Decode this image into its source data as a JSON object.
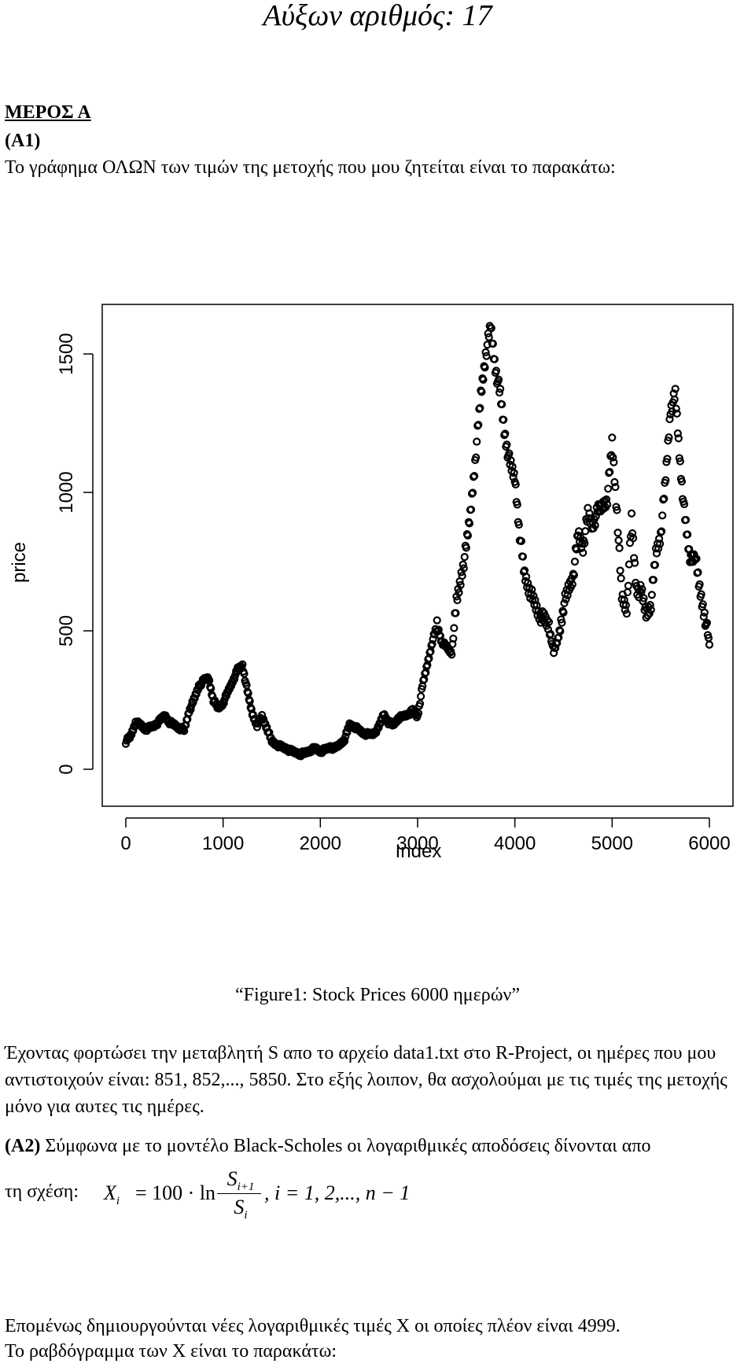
{
  "header": {
    "title": "Αύξων αριθμός: 17"
  },
  "section": {
    "heading": "ΜΕΡΟΣ Α",
    "label": "(Α1)",
    "intro": "Το γράφημα ΟΛΩΝ των τιμών της μετοχής που μου ζητείται είναι το παρακάτω:"
  },
  "chart_data": {
    "type": "scatter",
    "title": "",
    "xlabel": "Index",
    "ylabel": "price",
    "xlim": [
      0,
      6000
    ],
    "ylim": [
      0,
      1650
    ],
    "x_ticks": [
      "0",
      "1000",
      "2000",
      "3000",
      "4000",
      "5000",
      "6000"
    ],
    "y_ticks": [
      "0",
      "500",
      "1000",
      "1500"
    ],
    "grid": false,
    "series": [
      {
        "points": [
          [
            0,
            100
          ],
          [
            50,
            120
          ],
          [
            100,
            170
          ],
          [
            150,
            160
          ],
          [
            200,
            145
          ],
          [
            250,
            150
          ],
          [
            300,
            160
          ],
          [
            350,
            175
          ],
          [
            400,
            195
          ],
          [
            450,
            170
          ],
          [
            500,
            160
          ],
          [
            550,
            150
          ],
          [
            600,
            140
          ],
          [
            650,
            210
          ],
          [
            700,
            250
          ],
          [
            750,
            300
          ],
          [
            800,
            320
          ],
          [
            850,
            330
          ],
          [
            900,
            250
          ],
          [
            950,
            220
          ],
          [
            1000,
            240
          ],
          [
            1050,
            280
          ],
          [
            1100,
            320
          ],
          [
            1150,
            360
          ],
          [
            1200,
            375
          ],
          [
            1250,
            280
          ],
          [
            1300,
            200
          ],
          [
            1350,
            160
          ],
          [
            1400,
            190
          ],
          [
            1450,
            150
          ],
          [
            1500,
            100
          ],
          [
            1550,
            90
          ],
          [
            1600,
            80
          ],
          [
            1650,
            75
          ],
          [
            1700,
            65
          ],
          [
            1750,
            60
          ],
          [
            1800,
            55
          ],
          [
            1850,
            60
          ],
          [
            1900,
            70
          ],
          [
            1950,
            75
          ],
          [
            2000,
            65
          ],
          [
            2050,
            70
          ],
          [
            2100,
            80
          ],
          [
            2150,
            75
          ],
          [
            2200,
            90
          ],
          [
            2250,
            110
          ],
          [
            2300,
            160
          ],
          [
            2350,
            155
          ],
          [
            2400,
            140
          ],
          [
            2450,
            130
          ],
          [
            2500,
            125
          ],
          [
            2550,
            130
          ],
          [
            2600,
            150
          ],
          [
            2650,
            200
          ],
          [
            2700,
            170
          ],
          [
            2750,
            160
          ],
          [
            2800,
            185
          ],
          [
            2850,
            190
          ],
          [
            2900,
            200
          ],
          [
            2950,
            210
          ],
          [
            3000,
            190
          ],
          [
            3050,
            300
          ],
          [
            3100,
            380
          ],
          [
            3150,
            460
          ],
          [
            3200,
            520
          ],
          [
            3250,
            460
          ],
          [
            3300,
            440
          ],
          [
            3350,
            420
          ],
          [
            3400,
            600
          ],
          [
            3450,
            700
          ],
          [
            3500,
            800
          ],
          [
            3550,
            950
          ],
          [
            3600,
            1150
          ],
          [
            3650,
            1350
          ],
          [
            3700,
            1500
          ],
          [
            3750,
            1600
          ],
          [
            3800,
            1450
          ],
          [
            3850,
            1350
          ],
          [
            3900,
            1200
          ],
          [
            3950,
            1100
          ],
          [
            4000,
            1050
          ],
          [
            4050,
            850
          ],
          [
            4100,
            700
          ],
          [
            4150,
            650
          ],
          [
            4200,
            600
          ],
          [
            4250,
            560
          ],
          [
            4300,
            540
          ],
          [
            4350,
            520
          ],
          [
            4400,
            420
          ],
          [
            4450,
            480
          ],
          [
            4500,
            590
          ],
          [
            4550,
            650
          ],
          [
            4600,
            700
          ],
          [
            4650,
            850
          ],
          [
            4700,
            800
          ],
          [
            4750,
            920
          ],
          [
            4800,
            880
          ],
          [
            4850,
            930
          ],
          [
            4900,
            950
          ],
          [
            4950,
            980
          ],
          [
            5000,
            1180
          ],
          [
            5050,
            930
          ],
          [
            5100,
            620
          ],
          [
            5150,
            580
          ],
          [
            5200,
            900
          ],
          [
            5250,
            650
          ],
          [
            5300,
            640
          ],
          [
            5350,
            560
          ],
          [
            5400,
            600
          ],
          [
            5450,
            780
          ],
          [
            5500,
            850
          ],
          [
            5550,
            1050
          ],
          [
            5600,
            1300
          ],
          [
            5650,
            1350
          ],
          [
            5700,
            1100
          ],
          [
            5750,
            900
          ],
          [
            5800,
            760
          ],
          [
            5850,
            780
          ],
          [
            5900,
            650
          ],
          [
            5950,
            560
          ],
          [
            6000,
            450
          ]
        ]
      }
    ]
  },
  "figure": {
    "caption": "“Figure1: Stock Prices 6000 ημερών”"
  },
  "body": {
    "p1": "Έχοντας φορτώσει την  μεταβλητή S απο το αρχείο data1.txt στο R-Project, οι ημέρες που μου αντιστοιχούν είναι: 851, 852,..., 5850. Στο εξής λοιπον, θα ασχολούμαι με τις τιμές της μετοχής μόνο για αυτες τις ημέρες.",
    "p2_label": "(Α2)",
    "p2": " Σύμφωνα με το μοντέλο Black-Scholes οι λογαριθμικές αποδόσεις δίνονται απο",
    "p2_relation": "τη σχέση:",
    "p3": "Επομένως δημιουργούνται νέες λογαριθμικές τιμές X οι οποίες πλέον είναι 4999.",
    "p4": "Το ραβδόγραμμα των X είναι το παρακάτω:"
  },
  "formula": {
    "lhs": "X",
    "lhs_sub": "i",
    "equals": "= 100 · ln",
    "num": "S",
    "num_sub": "i+1",
    "den": "S",
    "den_sub": "i",
    "tail": ",  i = 1, 2,..., n − 1"
  }
}
